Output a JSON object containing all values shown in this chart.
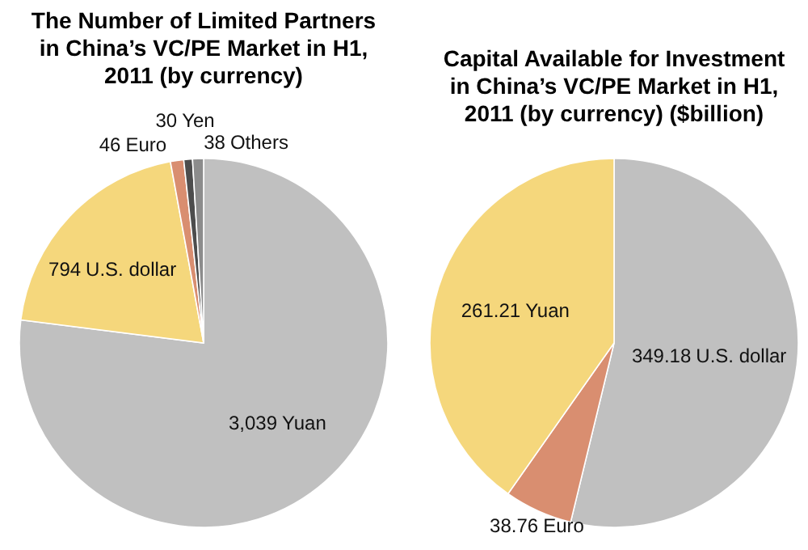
{
  "chart_data": [
    {
      "type": "pie",
      "title": "The Number of Limited Partners in China’s VC/PE Market in H1, 2011 (by currency)",
      "categories": [
        "Yuan",
        "U.S. dollar",
        "Euro",
        "Yen",
        "Others"
      ],
      "values": [
        3039,
        794,
        46,
        30,
        38
      ],
      "colors": [
        "#c0c0c0",
        "#f5d77c",
        "#d98e70",
        "#4d4d4d",
        "#8c8c8c"
      ],
      "value_labels": [
        "3,039",
        "794",
        "46",
        "30",
        "38"
      ]
    },
    {
      "type": "pie",
      "title": "Capital Available for Investment in China’s VC/PE Market in H1, 2011 (by currency) ($billion)",
      "categories": [
        "U.S. dollar",
        "Euro",
        "Yuan"
      ],
      "values": [
        349.18,
        38.76,
        261.21
      ],
      "colors": [
        "#c0c0c0",
        "#d98e70",
        "#f5d77c"
      ],
      "value_labels": [
        "349.18",
        "38.76",
        "261.21"
      ]
    }
  ]
}
